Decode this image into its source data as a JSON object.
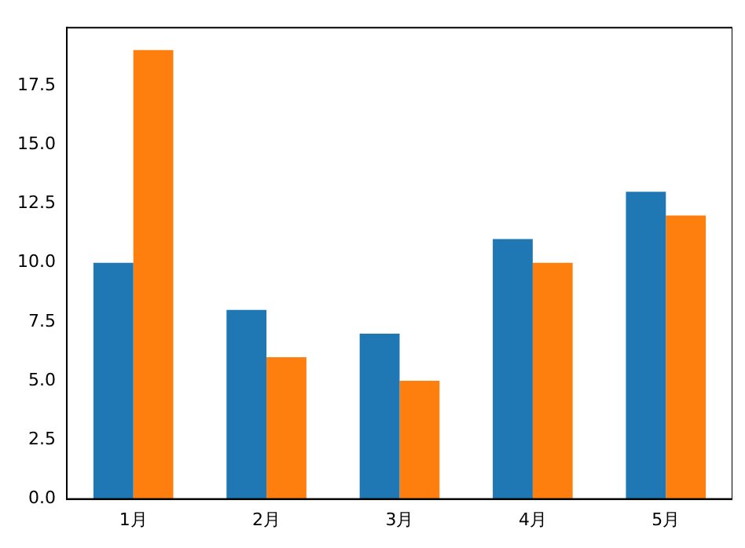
{
  "chart_data": {
    "type": "bar",
    "categories": [
      "1月",
      "2月",
      "3月",
      "4月",
      "5月"
    ],
    "series": [
      {
        "color": "#1f77b4",
        "values": [
          10,
          8,
          7,
          11,
          13
        ]
      },
      {
        "color": "#ff7f0e",
        "values": [
          19,
          6,
          5,
          10,
          12
        ]
      }
    ],
    "ylim": [
      0,
      19.95
    ],
    "yticks": [
      {
        "value": 0,
        "label": "0.0"
      },
      2.5,
      {
        "value": 5,
        "label": "5.0"
      },
      7.5,
      {
        "value": 10,
        "label": "10.0"
      },
      12.5,
      {
        "value": 15,
        "label": "15.0"
      },
      17.5
    ],
    "grid": false,
    "legend": false
  }
}
